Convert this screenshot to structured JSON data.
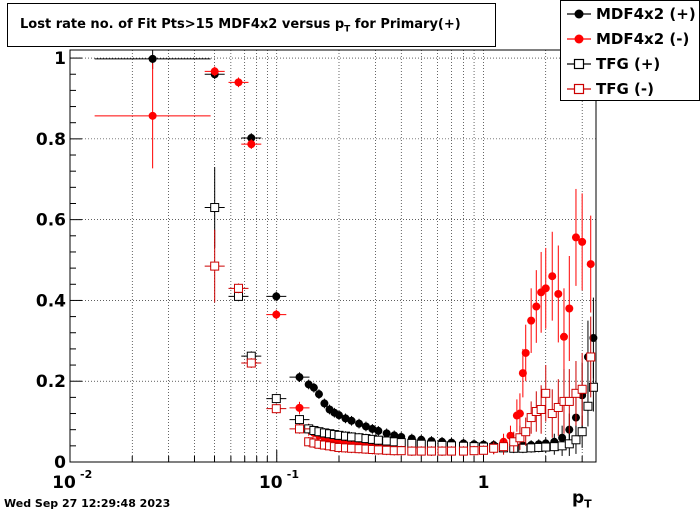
{
  "title": {
    "main": "Lost rate no. of Fit Pts>15 MDF4x2 versus p",
    "sub": "T",
    "suffix": " for Primary(+)"
  },
  "timestamp": "Wed Sep 27 12:29:48 2023",
  "x_axis": {
    "label": "p",
    "label_sub": "T"
  },
  "colors": {
    "black": "#000000",
    "red": "#ff0000",
    "dark_red": "#cc0000",
    "grid": "#999999"
  },
  "chart_data": {
    "type": "scatter",
    "x_scale": "log",
    "xlim": [
      0.01,
      3.5
    ],
    "ylim": [
      0,
      1.02
    ],
    "grid": true,
    "legend_position": "top-right",
    "x_ticks": [
      {
        "value": 0.01,
        "base": "10",
        "exp": "-2"
      },
      {
        "value": 0.1,
        "base": "10",
        "exp": "-1"
      },
      {
        "value": 1,
        "base": "1",
        "exp": ""
      }
    ],
    "y_ticks": [
      0,
      0.2,
      0.4,
      0.6,
      0.8,
      1
    ],
    "y_tick_labels": [
      "0",
      "0.2",
      "0.4",
      "0.6",
      "0.8",
      "1"
    ],
    "series": [
      {
        "name": "MDF4x2 (+)",
        "marker": "filled-circle",
        "color": "#000000",
        "points": [
          [
            0.0251,
            0.998,
            0.025
          ],
          [
            0.0501,
            0.96,
            0.012
          ],
          [
            0.0753,
            0.802,
            0.012
          ],
          [
            0.0995,
            0.41,
            0.012
          ],
          [
            0.1288,
            0.21,
            0.012
          ],
          [
            0.1427,
            0.192,
            0.012
          ],
          [
            0.1512,
            0.184,
            0.012
          ],
          [
            0.16,
            0.168,
            0.012
          ],
          [
            0.17,
            0.145,
            0.012
          ],
          [
            0.18,
            0.13,
            0.012
          ],
          [
            0.19,
            0.122,
            0.012
          ],
          [
            0.2,
            0.116,
            0.012
          ],
          [
            0.215,
            0.108,
            0.012
          ],
          [
            0.23,
            0.102,
            0.012
          ],
          [
            0.25,
            0.095,
            0.012
          ],
          [
            0.27,
            0.088,
            0.012
          ],
          [
            0.29,
            0.082,
            0.012
          ],
          [
            0.31,
            0.077,
            0.012
          ],
          [
            0.34,
            0.071,
            0.012
          ],
          [
            0.37,
            0.066,
            0.012
          ],
          [
            0.4,
            0.062,
            0.012
          ],
          [
            0.45,
            0.058,
            0.012
          ],
          [
            0.5,
            0.055,
            0.012
          ],
          [
            0.56,
            0.052,
            0.012
          ],
          [
            0.63,
            0.05,
            0.012
          ],
          [
            0.7,
            0.048,
            0.012
          ],
          [
            0.8,
            0.046,
            0.012
          ],
          [
            0.9,
            0.044,
            0.012
          ],
          [
            1.0,
            0.043,
            0.012
          ],
          [
            1.12,
            0.042,
            0.012
          ],
          [
            1.25,
            0.04,
            0.012
          ],
          [
            1.4,
            0.04,
            0.012
          ],
          [
            1.55,
            0.041,
            0.012
          ],
          [
            1.7,
            0.042,
            0.012
          ],
          [
            1.85,
            0.044,
            0.012
          ],
          [
            2.0,
            0.046,
            0.015
          ],
          [
            2.2,
            0.05,
            0.02
          ],
          [
            2.4,
            0.06,
            0.03
          ],
          [
            2.6,
            0.08,
            0.04
          ],
          [
            2.8,
            0.11,
            0.06
          ],
          [
            3.0,
            0.165,
            0.08
          ],
          [
            3.2,
            0.26,
            0.09
          ],
          [
            3.4,
            0.307,
            0.1
          ]
        ]
      },
      {
        "name": "MDF4x2 (-)",
        "marker": "filled-circle",
        "color": "#ff0000",
        "points": [
          [
            0.0251,
            0.857,
            0.13
          ],
          [
            0.0501,
            0.967,
            0.012
          ],
          [
            0.0653,
            0.94,
            0.012
          ],
          [
            0.0753,
            0.787,
            0.012
          ],
          [
            0.0995,
            0.365,
            0.012
          ],
          [
            0.1288,
            0.134,
            0.015
          ],
          [
            0.1427,
            0.08,
            0.015
          ],
          [
            0.1512,
            0.072,
            0.012
          ],
          [
            0.16,
            0.066,
            0.012
          ],
          [
            0.17,
            0.06,
            0.012
          ],
          [
            0.18,
            0.056,
            0.012
          ],
          [
            0.19,
            0.052,
            0.012
          ],
          [
            0.2,
            0.05,
            0.012
          ],
          [
            0.215,
            0.048,
            0.012
          ],
          [
            0.23,
            0.046,
            0.012
          ],
          [
            0.25,
            0.044,
            0.012
          ],
          [
            0.27,
            0.042,
            0.012
          ],
          [
            0.29,
            0.04,
            0.012
          ],
          [
            0.31,
            0.039,
            0.012
          ],
          [
            0.34,
            0.038,
            0.012
          ],
          [
            0.37,
            0.036,
            0.012
          ],
          [
            0.4,
            0.035,
            0.012
          ],
          [
            0.45,
            0.034,
            0.012
          ],
          [
            0.5,
            0.033,
            0.012
          ],
          [
            0.56,
            0.032,
            0.012
          ],
          [
            0.63,
            0.031,
            0.012
          ],
          [
            0.7,
            0.031,
            0.012
          ],
          [
            0.8,
            0.03,
            0.012
          ],
          [
            0.9,
            0.03,
            0.012
          ],
          [
            1.0,
            0.031,
            0.012
          ],
          [
            1.12,
            0.035,
            0.015
          ],
          [
            1.25,
            0.05,
            0.02
          ],
          [
            1.35,
            0.065,
            0.025
          ],
          [
            1.45,
            0.115,
            0.04
          ],
          [
            1.5,
            0.12,
            0.05
          ],
          [
            1.55,
            0.22,
            0.06
          ],
          [
            1.6,
            0.27,
            0.07
          ],
          [
            1.7,
            0.35,
            0.08
          ],
          [
            1.8,
            0.385,
            0.09
          ],
          [
            1.9,
            0.42,
            0.1
          ],
          [
            2.0,
            0.43,
            0.1
          ],
          [
            2.15,
            0.46,
            0.11
          ],
          [
            2.3,
            0.416,
            0.12
          ],
          [
            2.45,
            0.31,
            0.12
          ],
          [
            2.6,
            0.38,
            0.13
          ],
          [
            2.8,
            0.556,
            0.12
          ],
          [
            3.0,
            0.545,
            0.12
          ],
          [
            3.3,
            0.49,
            0.12
          ]
        ]
      },
      {
        "name": "TFG (+)",
        "marker": "open-square",
        "color": "#000000",
        "points": [
          [
            0.0501,
            0.63,
            0.1
          ],
          [
            0.0653,
            0.41,
            0.012
          ],
          [
            0.0753,
            0.262,
            0.012
          ],
          [
            0.0995,
            0.157,
            0.012
          ],
          [
            0.1288,
            0.105,
            0.012
          ],
          [
            0.1427,
            0.082,
            0.012
          ],
          [
            0.1512,
            0.078,
            0.012
          ],
          [
            0.16,
            0.075,
            0.012
          ],
          [
            0.17,
            0.072,
            0.012
          ],
          [
            0.18,
            0.07,
            0.012
          ],
          [
            0.19,
            0.068,
            0.012
          ],
          [
            0.2,
            0.066,
            0.012
          ],
          [
            0.215,
            0.064,
            0.012
          ],
          [
            0.23,
            0.062,
            0.012
          ],
          [
            0.25,
            0.06,
            0.012
          ],
          [
            0.27,
            0.058,
            0.012
          ],
          [
            0.29,
            0.056,
            0.012
          ],
          [
            0.31,
            0.054,
            0.012
          ],
          [
            0.34,
            0.052,
            0.012
          ],
          [
            0.37,
            0.05,
            0.012
          ],
          [
            0.4,
            0.048,
            0.012
          ],
          [
            0.45,
            0.046,
            0.012
          ],
          [
            0.5,
            0.044,
            0.012
          ],
          [
            0.56,
            0.042,
            0.012
          ],
          [
            0.63,
            0.041,
            0.012
          ],
          [
            0.7,
            0.04,
            0.012
          ],
          [
            0.8,
            0.039,
            0.012
          ],
          [
            0.9,
            0.038,
            0.012
          ],
          [
            1.0,
            0.037,
            0.012
          ],
          [
            1.12,
            0.036,
            0.012
          ],
          [
            1.25,
            0.035,
            0.012
          ],
          [
            1.4,
            0.034,
            0.012
          ],
          [
            1.55,
            0.034,
            0.012
          ],
          [
            1.7,
            0.035,
            0.012
          ],
          [
            1.85,
            0.036,
            0.012
          ],
          [
            2.0,
            0.037,
            0.015
          ],
          [
            2.2,
            0.038,
            0.02
          ],
          [
            2.4,
            0.04,
            0.025
          ],
          [
            2.6,
            0.045,
            0.03
          ],
          [
            2.8,
            0.055,
            0.035
          ],
          [
            3.0,
            0.075,
            0.04
          ],
          [
            3.2,
            0.138,
            0.05
          ],
          [
            3.4,
            0.185,
            0.06
          ]
        ]
      },
      {
        "name": "TFG (-)",
        "marker": "open-square",
        "color": "#cc0000",
        "points": [
          [
            0.0501,
            0.485,
            0.09
          ],
          [
            0.0653,
            0.43,
            0.012
          ],
          [
            0.0753,
            0.245,
            0.012
          ],
          [
            0.0995,
            0.132,
            0.012
          ],
          [
            0.1288,
            0.082,
            0.012
          ],
          [
            0.1427,
            0.05,
            0.012
          ],
          [
            0.1512,
            0.047,
            0.012
          ],
          [
            0.16,
            0.044,
            0.012
          ],
          [
            0.17,
            0.042,
            0.012
          ],
          [
            0.18,
            0.04,
            0.012
          ],
          [
            0.19,
            0.038,
            0.012
          ],
          [
            0.2,
            0.036,
            0.012
          ],
          [
            0.215,
            0.035,
            0.012
          ],
          [
            0.23,
            0.034,
            0.012
          ],
          [
            0.25,
            0.033,
            0.012
          ],
          [
            0.27,
            0.032,
            0.012
          ],
          [
            0.29,
            0.031,
            0.012
          ],
          [
            0.31,
            0.03,
            0.012
          ],
          [
            0.34,
            0.029,
            0.012
          ],
          [
            0.37,
            0.028,
            0.012
          ],
          [
            0.4,
            0.028,
            0.012
          ],
          [
            0.45,
            0.027,
            0.012
          ],
          [
            0.5,
            0.027,
            0.012
          ],
          [
            0.56,
            0.027,
            0.012
          ],
          [
            0.63,
            0.027,
            0.012
          ],
          [
            0.7,
            0.027,
            0.012
          ],
          [
            0.8,
            0.027,
            0.012
          ],
          [
            0.9,
            0.028,
            0.012
          ],
          [
            1.0,
            0.029,
            0.012
          ],
          [
            1.12,
            0.034,
            0.015
          ],
          [
            1.25,
            0.038,
            0.02
          ],
          [
            1.4,
            0.05,
            0.025
          ],
          [
            1.5,
            0.06,
            0.03
          ],
          [
            1.6,
            0.075,
            0.035
          ],
          [
            1.7,
            0.11,
            0.04
          ],
          [
            1.8,
            0.125,
            0.05
          ],
          [
            1.9,
            0.13,
            0.06
          ],
          [
            2.0,
            0.17,
            0.07
          ],
          [
            2.15,
            0.12,
            0.06
          ],
          [
            2.3,
            0.135,
            0.07
          ],
          [
            2.45,
            0.15,
            0.08
          ],
          [
            2.6,
            0.15,
            0.08
          ],
          [
            2.8,
            0.17,
            0.08
          ],
          [
            3.0,
            0.18,
            0.09
          ],
          [
            3.3,
            0.26,
            0.1
          ]
        ]
      }
    ]
  }
}
